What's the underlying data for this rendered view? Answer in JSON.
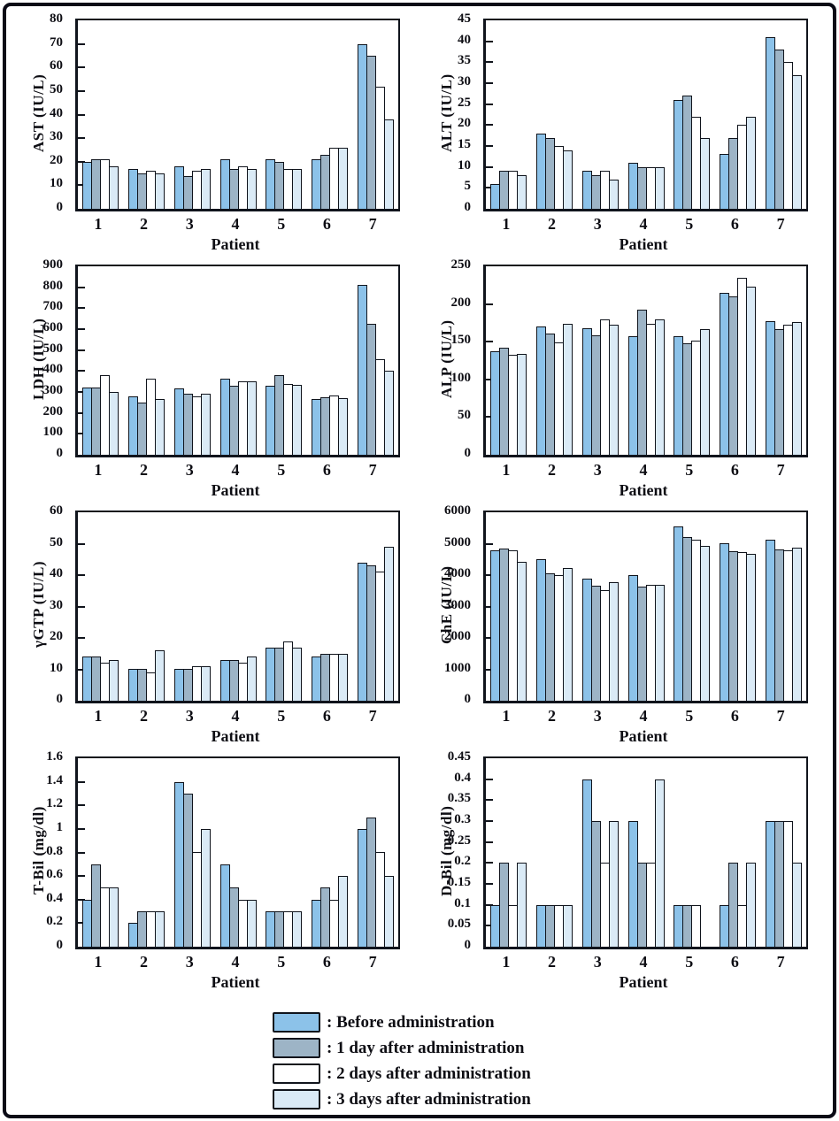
{
  "colors": {
    "before": "#8CC2E9",
    "one_day": "#9DB4C6",
    "two_days": "#FFFFFF",
    "three_days": "#DAEAF6",
    "outline": "#10141C"
  },
  "chart_data": [
    {
      "type": "bar",
      "title": "AST",
      "ylabel": "AST (IU/L)",
      "xlabel": "Patient",
      "categories": [
        "1",
        "2",
        "3",
        "4",
        "5",
        "6",
        "7"
      ],
      "ylim": [
        0,
        80
      ],
      "yticks": [
        "0",
        "10",
        "20",
        "30",
        "40",
        "50",
        "60",
        "70",
        "80"
      ],
      "grid": false,
      "legend_position": "none",
      "series": [
        {
          "name": "Before administration",
          "color_key": "before",
          "values": [
            20,
            17,
            18,
            21,
            21,
            21,
            70
          ]
        },
        {
          "name": "1 day after administration",
          "color_key": "one_day",
          "values": [
            21,
            15,
            14,
            17,
            20,
            23,
            65
          ]
        },
        {
          "name": "2 days after administration",
          "color_key": "two_days",
          "values": [
            21,
            16,
            16,
            18,
            17,
            26,
            52
          ]
        },
        {
          "name": "3 days after administration",
          "color_key": "three_days",
          "values": [
            18,
            15,
            17,
            17,
            17,
            26,
            38
          ]
        }
      ]
    },
    {
      "type": "bar",
      "title": "ALT",
      "ylabel": "ALT (IU/L)",
      "xlabel": "Patient",
      "categories": [
        "1",
        "2",
        "3",
        "4",
        "5",
        "6",
        "7"
      ],
      "ylim": [
        0,
        45
      ],
      "yticks": [
        "0",
        "5",
        "10",
        "15",
        "20",
        "25",
        "30",
        "35",
        "40",
        "45"
      ],
      "grid": false,
      "legend_position": "none",
      "series": [
        {
          "name": "Before administration",
          "color_key": "before",
          "values": [
            6,
            18,
            9,
            11,
            26,
            13,
            41
          ]
        },
        {
          "name": "1 day after administration",
          "color_key": "one_day",
          "values": [
            9,
            17,
            8,
            10,
            27,
            17,
            38
          ]
        },
        {
          "name": "2 days after administration",
          "color_key": "two_days",
          "values": [
            9,
            15,
            9,
            10,
            22,
            20,
            35
          ]
        },
        {
          "name": "3 days after administration",
          "color_key": "three_days",
          "values": [
            8,
            14,
            7,
            10,
            17,
            22,
            32
          ]
        }
      ]
    },
    {
      "type": "bar",
      "title": "LDH",
      "ylabel": "LDH (IU/L)",
      "xlabel": "Patient",
      "categories": [
        "1",
        "2",
        "3",
        "4",
        "5",
        "6",
        "7"
      ],
      "ylim": [
        0,
        900
      ],
      "yticks": [
        "0",
        "100",
        "200",
        "300",
        "400",
        "500",
        "600",
        "700",
        "800",
        "900"
      ],
      "grid": false,
      "legend_position": "none",
      "series": [
        {
          "name": "Before administration",
          "color_key": "before",
          "values": [
            320,
            280,
            315,
            365,
            330,
            265,
            810
          ]
        },
        {
          "name": "1 day after administration",
          "color_key": "one_day",
          "values": [
            320,
            250,
            290,
            330,
            380,
            275,
            625
          ]
        },
        {
          "name": "2 days after administration",
          "color_key": "two_days",
          "values": [
            380,
            365,
            280,
            350,
            340,
            285,
            455
          ]
        },
        {
          "name": "3 days after administration",
          "color_key": "three_days",
          "values": [
            300,
            265,
            290,
            350,
            335,
            270,
            400
          ]
        }
      ]
    },
    {
      "type": "bar",
      "title": "ALP",
      "ylabel": "ALP (IU/L)",
      "xlabel": "Patient",
      "categories": [
        "1",
        "2",
        "3",
        "4",
        "5",
        "6",
        "7"
      ],
      "ylim": [
        0,
        250
      ],
      "yticks": [
        "0",
        "50",
        "100",
        "150",
        "200",
        "250"
      ],
      "grid": false,
      "legend_position": "none",
      "series": [
        {
          "name": "Before administration",
          "color_key": "before",
          "values": [
            137,
            170,
            168,
            157,
            157,
            215,
            177
          ]
        },
        {
          "name": "1 day after administration",
          "color_key": "one_day",
          "values": [
            142,
            161,
            158,
            192,
            148,
            210,
            167
          ]
        },
        {
          "name": "2 days after administration",
          "color_key": "two_days",
          "values": [
            133,
            149,
            179,
            174,
            151,
            235,
            173
          ]
        },
        {
          "name": "3 days after administration",
          "color_key": "three_days",
          "values": [
            134,
            174,
            173,
            180,
            167,
            223,
            176
          ]
        }
      ]
    },
    {
      "type": "bar",
      "title": "gamma-GTP",
      "ylabel": "γGTP (IU/L)",
      "xlabel": "Patient",
      "categories": [
        "1",
        "2",
        "3",
        "4",
        "5",
        "6",
        "7"
      ],
      "ylim": [
        0,
        60
      ],
      "yticks": [
        "0",
        "10",
        "20",
        "30",
        "40",
        "50",
        "60"
      ],
      "grid": false,
      "legend_position": "none",
      "series": [
        {
          "name": "Before administration",
          "color_key": "before",
          "values": [
            14,
            10,
            10,
            13,
            17,
            14,
            44
          ]
        },
        {
          "name": "1 day after administration",
          "color_key": "one_day",
          "values": [
            14,
            10,
            10,
            13,
            17,
            15,
            43
          ]
        },
        {
          "name": "2 days after administration",
          "color_key": "two_days",
          "values": [
            12,
            9,
            11,
            12,
            19,
            15,
            41
          ]
        },
        {
          "name": "3 days after administration",
          "color_key": "three_days",
          "values": [
            13,
            16,
            11,
            14,
            17,
            15,
            49
          ]
        }
      ]
    },
    {
      "type": "bar",
      "title": "ChE",
      "ylabel": "ChE (IU/L)",
      "xlabel": "Patient",
      "categories": [
        "1",
        "2",
        "3",
        "4",
        "5",
        "6",
        "7"
      ],
      "ylim": [
        0,
        6000
      ],
      "yticks": [
        "0",
        "1000",
        "2000",
        "3000",
        "4000",
        "5000",
        "6000"
      ],
      "grid": false,
      "legend_position": "none",
      "series": [
        {
          "name": "Before administration",
          "color_key": "before",
          "values": [
            4780,
            4500,
            3880,
            4000,
            5550,
            5000,
            5130
          ]
        },
        {
          "name": "1 day after administration",
          "color_key": "one_day",
          "values": [
            4850,
            4050,
            3650,
            3630,
            5200,
            4760,
            4820
          ]
        },
        {
          "name": "2 days after administration",
          "color_key": "two_days",
          "values": [
            4780,
            4000,
            3520,
            3700,
            5120,
            4740,
            4790
          ]
        },
        {
          "name": "3 days after administration",
          "color_key": "three_days",
          "values": [
            4420,
            4230,
            3780,
            3680,
            4920,
            4690,
            4880
          ]
        }
      ]
    },
    {
      "type": "bar",
      "title": "T-Bil",
      "ylabel": "T-Bil (mg/dl)",
      "xlabel": "Patient",
      "categories": [
        "1",
        "2",
        "3",
        "4",
        "5",
        "6",
        "7"
      ],
      "ylim": [
        0,
        1.6
      ],
      "yticks": [
        "0",
        "0.2",
        "0.4",
        "0.6",
        "0.8",
        "1",
        "1.2",
        "1.4",
        "1.6"
      ],
      "grid": false,
      "legend_position": "none",
      "series": [
        {
          "name": "Before administration",
          "color_key": "before",
          "values": [
            0.4,
            0.2,
            1.4,
            0.7,
            0.3,
            0.4,
            1.0
          ]
        },
        {
          "name": "1 day after administration",
          "color_key": "one_day",
          "values": [
            0.7,
            0.3,
            1.3,
            0.5,
            0.3,
            0.5,
            1.1
          ]
        },
        {
          "name": "2 days after administration",
          "color_key": "two_days",
          "values": [
            0.5,
            0.3,
            0.8,
            0.4,
            0.3,
            0.4,
            0.8
          ]
        },
        {
          "name": "3 days after administration",
          "color_key": "three_days",
          "values": [
            0.5,
            0.3,
            1.0,
            0.4,
            0.3,
            0.6,
            0.6
          ]
        }
      ]
    },
    {
      "type": "bar",
      "title": "D-Bil",
      "ylabel": "D-Bil (mg/dl)",
      "xlabel": "Patient",
      "categories": [
        "1",
        "2",
        "3",
        "4",
        "5",
        "6",
        "7"
      ],
      "ylim": [
        0,
        0.45
      ],
      "yticks": [
        "0",
        "0.05",
        "0.1",
        "0.15",
        "0.2",
        "0.25",
        "0.3",
        "0.35",
        "0.4",
        "0.45"
      ],
      "grid": false,
      "legend_position": "none",
      "series": [
        {
          "name": "Before administration",
          "color_key": "before",
          "values": [
            0.1,
            0.1,
            0.4,
            0.3,
            0.1,
            0.1,
            0.3
          ]
        },
        {
          "name": "1 day after administration",
          "color_key": "one_day",
          "values": [
            0.2,
            0.1,
            0.3,
            0.2,
            0.1,
            0.2,
            0.3
          ]
        },
        {
          "name": "2 days after administration",
          "color_key": "two_days",
          "values": [
            0.1,
            0.1,
            0.2,
            0.2,
            0.1,
            0.1,
            0.3
          ]
        },
        {
          "name": "3 days after administration",
          "color_key": "three_days",
          "values": [
            0.2,
            0.1,
            0.3,
            0.4,
            0,
            0.2,
            0.2
          ]
        }
      ]
    }
  ],
  "legend": {
    "items": [
      {
        "label": ": Before administration",
        "color_key": "before"
      },
      {
        "label": ": 1 day after administration",
        "color_key": "one_day"
      },
      {
        "label": ": 2 days after administration",
        "color_key": "two_days"
      },
      {
        "label": ": 3 days after administration",
        "color_key": "three_days"
      }
    ]
  }
}
